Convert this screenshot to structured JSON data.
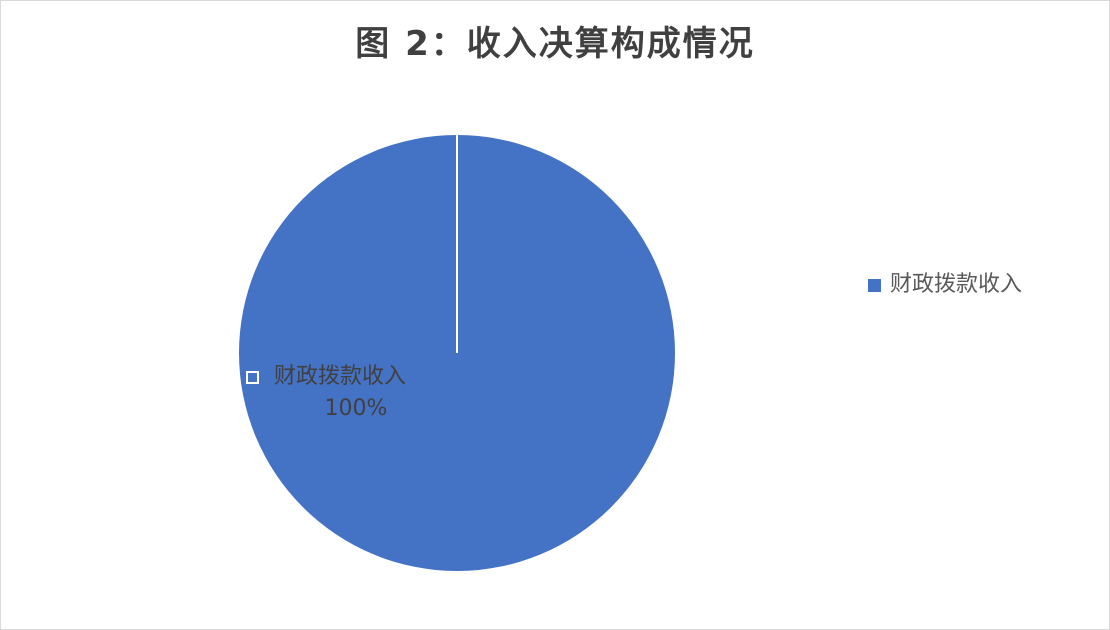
{
  "chart_data": {
    "type": "pie",
    "title": "图 2：收入决算构成情况",
    "slices": [
      {
        "name": "财政拨款收入",
        "value": 100,
        "label": "100%",
        "color": "#4472C4"
      }
    ],
    "legend_position": "right",
    "separator_color": "#ffffff"
  }
}
